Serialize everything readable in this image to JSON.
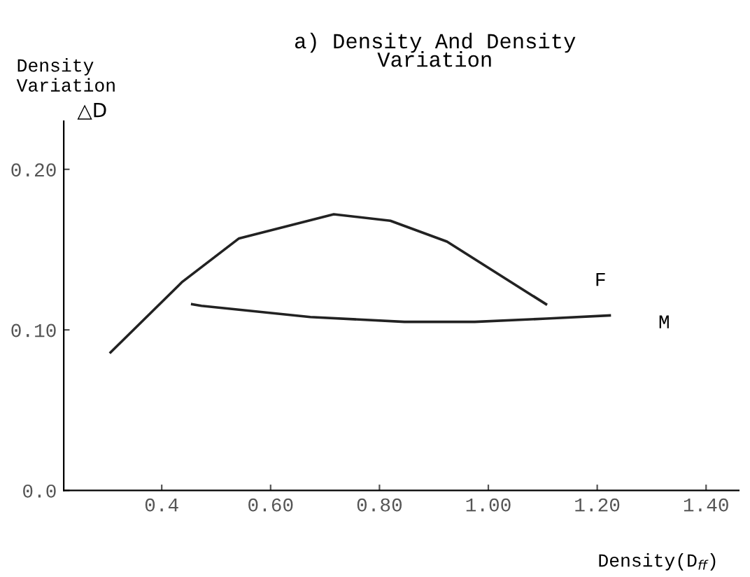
{
  "chart_data": {
    "type": "line",
    "title": "a) Density And Density\nVariation",
    "xlabel": "Density(D$_{ff}$)",
    "ylabel": "Density\nVariation",
    "annotations": [
      "△D"
    ],
    "xlim": [
      0.22,
      1.46
    ],
    "xticks": [
      {
        "value": 0.4,
        "label": "0.4"
      },
      {
        "value": 0.6,
        "label": "0.60"
      },
      {
        "value": 0.8,
        "label": "0.80"
      },
      {
        "value": 1.0,
        "label": "1.00"
      },
      {
        "value": 1.2,
        "label": "1.20"
      },
      {
        "value": 1.4,
        "label": "1.40"
      }
    ],
    "ylim": [
      0,
      0.23
    ],
    "yticks": [
      {
        "value": 0,
        "label": "0.0"
      },
      {
        "value": 0.1,
        "label": "0.10"
      },
      {
        "value": 0.2,
        "label": "0.20"
      }
    ],
    "grid": false,
    "legend": false,
    "marker": "none",
    "line_style": "solid",
    "series": [
      {
        "name": "F",
        "color": "#222222",
        "x": [
          0.306,
          0.438,
          0.542,
          0.716,
          0.82,
          0.924,
          1.106
        ],
        "values": [
          0.086,
          0.13,
          0.157,
          0.172,
          0.168,
          0.155,
          0.116
        ]
      },
      {
        "name": "M",
        "color": "#222222",
        "x": [
          0.456,
          0.473,
          0.673,
          0.846,
          0.975,
          1.106,
          1.223
        ],
        "values": [
          0.116,
          0.115,
          0.108,
          0.105,
          0.105,
          0.107,
          0.109
        ]
      }
    ]
  }
}
